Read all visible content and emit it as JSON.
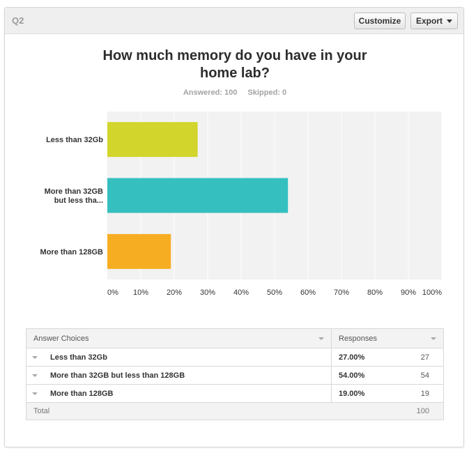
{
  "header": {
    "question_label": "Q2",
    "customize_label": "Customize",
    "export_label": "Export"
  },
  "question": {
    "title_line1": "How much memory do you have in your",
    "title_line2": "home lab?",
    "answered": "Answered: 100",
    "skipped": "Skipped: 0"
  },
  "chart_data": {
    "type": "bar",
    "orientation": "horizontal",
    "categories": [
      "Less than 32Gb",
      "More than 32GB but less tha...",
      "More than 128GB"
    ],
    "category_label_lines": [
      [
        "Less than 32Gb"
      ],
      [
        "More than 32GB",
        "but less tha..."
      ],
      [
        "More than 128GB"
      ]
    ],
    "values": [
      27,
      54,
      19
    ],
    "colors": [
      "#d2d52b",
      "#35bfbf",
      "#f7ad21"
    ],
    "xlim": [
      0,
      100
    ],
    "xticks": [
      "0%",
      "10%",
      "20%",
      "30%",
      "40%",
      "50%",
      "60%",
      "70%",
      "80%",
      "90%",
      "100%"
    ],
    "grid": true,
    "plot_background": "#f2f2f2"
  },
  "table": {
    "col_answer": "Answer Choices",
    "col_responses": "Responses",
    "rows": [
      {
        "answer": "Less than 32Gb",
        "percent": "27.00%",
        "count": "27"
      },
      {
        "answer": "More than 32GB but less than 128GB",
        "percent": "54.00%",
        "count": "54"
      },
      {
        "answer": "More than 128GB",
        "percent": "19.00%",
        "count": "19"
      }
    ],
    "total_label": "Total",
    "total_value": "100"
  }
}
